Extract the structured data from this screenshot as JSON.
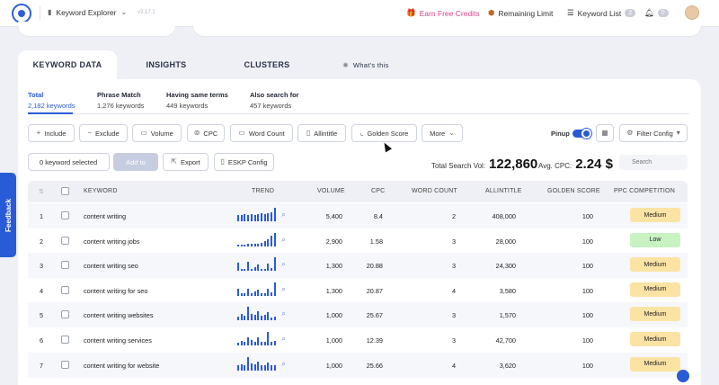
{
  "header": {
    "tool_name": "Keyword Explorer",
    "version": "v3.17.1",
    "earn_credits": "Earn Free Credits",
    "remaining_limit": "Remaining Limit",
    "keyword_list": "Keyword List",
    "keyword_list_count": "2",
    "notifications_count": "0"
  },
  "tabs": [
    "KEYWORD DATA",
    "INSIGHTS",
    "CLUSTERS",
    "What's this"
  ],
  "subtabs": [
    {
      "label": "Total",
      "count": "2,182 keywords"
    },
    {
      "label": "Phrase Match",
      "count": "1,276 keywords"
    },
    {
      "label": "Having same terms",
      "count": "449 keywords"
    },
    {
      "label": "Also search for",
      "count": "457 keywords"
    }
  ],
  "filters": {
    "include": "Include",
    "exclude": "Exclude",
    "volume": "Volume",
    "cpc": "CPC",
    "word_count": "Word Count",
    "allintitle": "Allintitle",
    "golden_score": "Golden Score",
    "more": "More",
    "pinup": "Pinup",
    "filter_config": "Filter Config"
  },
  "actions": {
    "selected": "0 keyword selected",
    "add_to": "Add to",
    "export": "Export",
    "eskp": "ESKP Config",
    "search_placeholder": "Search"
  },
  "stats": {
    "total_label": "Total Search Vol:",
    "total_value": "122,860",
    "cpc_label": "Avg. CPC:",
    "cpc_value": "2.24 $"
  },
  "table": {
    "headers": [
      "#",
      "KEYWORD",
      "TREND",
      "VOLUME",
      "CPC",
      "WORD COUNT",
      "ALLINTITLE",
      "GOLDEN SCORE",
      "PPC COMPETITION"
    ],
    "rows": [
      {
        "n": "1",
        "keyword": "content writing",
        "volume": "5,400",
        "cpc": "8.4",
        "words": "2",
        "allintitle": "408,000",
        "golden": "100",
        "comp": "Medium"
      },
      {
        "n": "2",
        "keyword": "content writing jobs",
        "volume": "2,900",
        "cpc": "1.58",
        "words": "3",
        "allintitle": "28,000",
        "golden": "100",
        "comp": "Low"
      },
      {
        "n": "3",
        "keyword": "content writing seo",
        "volume": "1,300",
        "cpc": "20.88",
        "words": "3",
        "allintitle": "24,300",
        "golden": "100",
        "comp": "Medium"
      },
      {
        "n": "4",
        "keyword": "content writing for seo",
        "volume": "1,300",
        "cpc": "20.87",
        "words": "4",
        "allintitle": "3,580",
        "golden": "100",
        "comp": "Medium"
      },
      {
        "n": "5",
        "keyword": "content writing websites",
        "volume": "1,000",
        "cpc": "25.67",
        "words": "3",
        "allintitle": "1,570",
        "golden": "100",
        "comp": "Medium"
      },
      {
        "n": "6",
        "keyword": "content writing services",
        "volume": "1,000",
        "cpc": "12.39",
        "words": "3",
        "allintitle": "42,700",
        "golden": "100",
        "comp": "Medium"
      },
      {
        "n": "7",
        "keyword": "content writing for website",
        "volume": "1,000",
        "cpc": "25.66",
        "words": "4",
        "allintitle": "3,620",
        "golden": "100",
        "comp": "Medium"
      }
    ]
  },
  "trends": [
    [
      0.45,
      0.5,
      0.55,
      0.5,
      0.55,
      0.5,
      0.55,
      0.6,
      0.55,
      0.6,
      0.65,
      1.0
    ],
    [
      0.1,
      0.12,
      0.12,
      0.15,
      0.15,
      0.2,
      0.2,
      0.25,
      0.35,
      0.5,
      0.75,
      1.0
    ],
    [
      0.6,
      0.15,
      0.15,
      0.65,
      0.15,
      0.25,
      0.5,
      0.15,
      0.15,
      0.55,
      0.2,
      1.0
    ],
    [
      0.55,
      0.2,
      0.2,
      0.5,
      0.2,
      0.3,
      0.45,
      0.2,
      0.2,
      0.55,
      0.25,
      1.0
    ],
    [
      0.3,
      0.5,
      0.35,
      1.0,
      0.5,
      0.45,
      0.7,
      0.35,
      0.4,
      0.65,
      0.25,
      0.3
    ],
    [
      0.2,
      0.35,
      0.3,
      0.6,
      0.4,
      0.3,
      0.6,
      0.3,
      0.3,
      1.0,
      0.25,
      0.35
    ],
    [
      0.35,
      0.45,
      0.4,
      1.0,
      0.5,
      0.45,
      0.65,
      0.35,
      0.4,
      0.55,
      0.35,
      0.4
    ]
  ],
  "competition_colors": {
    "Medium": "#fbe3a4",
    "Low": "#c8f2c2"
  },
  "feedback": "Feedback"
}
